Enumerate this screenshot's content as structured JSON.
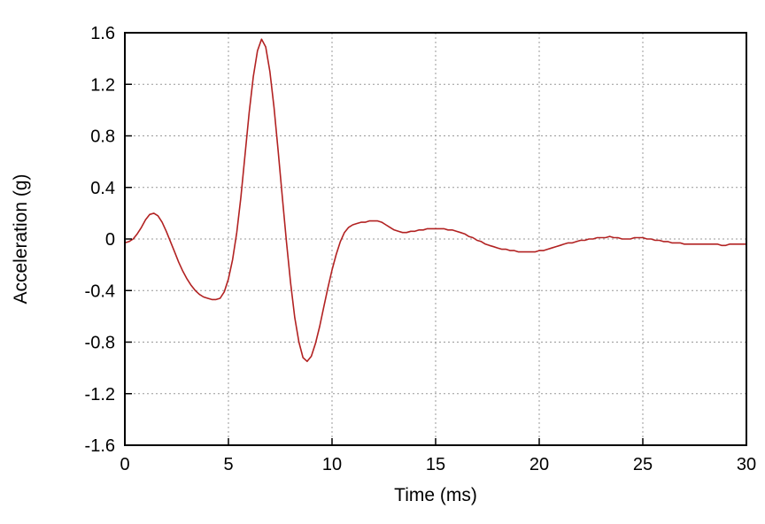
{
  "chart_data": {
    "type": "line",
    "title": "",
    "xlabel": "Time (ms)",
    "ylabel": "Acceleration (g)",
    "xlim": [
      0,
      30
    ],
    "ylim": [
      -1.6,
      1.6
    ],
    "x_ticks": [
      0,
      5,
      10,
      15,
      20,
      25,
      30
    ],
    "x_tick_labels": [
      "0",
      "5",
      "10",
      "15",
      "20",
      "25",
      "30"
    ],
    "y_ticks": [
      -1.6,
      -1.2,
      -0.8,
      -0.4,
      0,
      0.4,
      0.8,
      1.2,
      1.6
    ],
    "y_tick_labels": [
      "-1.6",
      "-1.2",
      "-0.8",
      "-0.4",
      "0",
      "0.4",
      "0.8",
      "1.2",
      "1.6"
    ],
    "grid": "dashed",
    "grid_color": "#999999",
    "axis_color": "#000000",
    "legend": "none",
    "series": [
      {
        "name": "acceleration",
        "color": "#b22222",
        "x0": 0,
        "dx": 0.2,
        "y": [
          -0.03,
          -0.02,
          0.0,
          0.04,
          0.09,
          0.15,
          0.19,
          0.2,
          0.18,
          0.13,
          0.06,
          -0.02,
          -0.1,
          -0.18,
          -0.25,
          -0.31,
          -0.36,
          -0.4,
          -0.43,
          -0.45,
          -0.46,
          -0.47,
          -0.47,
          -0.46,
          -0.41,
          -0.31,
          -0.16,
          0.05,
          0.32,
          0.65,
          0.98,
          1.26,
          1.46,
          1.55,
          1.49,
          1.3,
          1.02,
          0.68,
          0.33,
          -0.02,
          -0.34,
          -0.61,
          -0.8,
          -0.92,
          -0.95,
          -0.91,
          -0.81,
          -0.68,
          -0.53,
          -0.38,
          -0.24,
          -0.12,
          -0.02,
          0.05,
          0.09,
          0.11,
          0.12,
          0.13,
          0.13,
          0.14,
          0.14,
          0.14,
          0.13,
          0.11,
          0.09,
          0.07,
          0.06,
          0.05,
          0.05,
          0.06,
          0.06,
          0.07,
          0.07,
          0.08,
          0.08,
          0.08,
          0.08,
          0.08,
          0.07,
          0.07,
          0.06,
          0.05,
          0.04,
          0.02,
          0.01,
          -0.01,
          -0.02,
          -0.04,
          -0.05,
          -0.06,
          -0.07,
          -0.08,
          -0.08,
          -0.09,
          -0.09,
          -0.1,
          -0.1,
          -0.1,
          -0.1,
          -0.1,
          -0.09,
          -0.09,
          -0.08,
          -0.07,
          -0.06,
          -0.05,
          -0.04,
          -0.03,
          -0.03,
          -0.02,
          -0.01,
          -0.01,
          0.0,
          0.0,
          0.01,
          0.01,
          0.01,
          0.02,
          0.01,
          0.01,
          0.0,
          0.0,
          0.0,
          0.01,
          0.01,
          0.01,
          0.0,
          0.0,
          -0.01,
          -0.01,
          -0.02,
          -0.02,
          -0.03,
          -0.03,
          -0.03,
          -0.04,
          -0.04,
          -0.04,
          -0.04,
          -0.04,
          -0.04,
          -0.04,
          -0.04,
          -0.04,
          -0.05,
          -0.05,
          -0.04,
          -0.04,
          -0.04,
          -0.04,
          -0.04
        ]
      }
    ]
  }
}
